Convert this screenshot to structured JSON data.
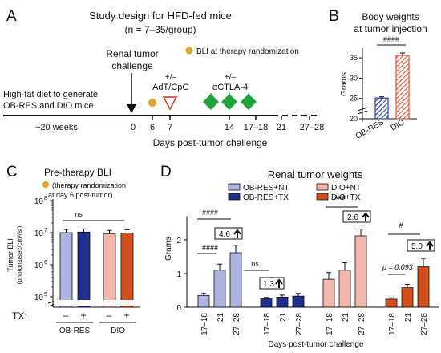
{
  "colors": {
    "ob_nt": "#aeb4e0",
    "ob_tx": "#1f2f8f",
    "dio_nt": "#f2b6ad",
    "dio_tx": "#d2501b",
    "green": "#1fa33a",
    "gold": "#e0a32a",
    "red": "#c8361a"
  },
  "panel_a": {
    "label": "A",
    "title": "Study design for HFD-fed mice",
    "n": "(n = 7–35/group)",
    "challenge_1": "Renal tumor",
    "challenge_2": "challenge",
    "bli_legend": "BLI at therapy randomization",
    "adt_pm": "+/–",
    "adt": "AdT/CpG",
    "actla4_pm": "+/–",
    "actla4": "αCTLA-4",
    "hfd_1": "High-fat diet to generate",
    "hfd_2": "OB-RES and DIO mice",
    "weeks": "~20 weeks",
    "ticks": [
      "0",
      "6",
      "7",
      "14",
      "17–18",
      "21",
      "27–28"
    ],
    "xlabel": "Days post-tumor challenge"
  },
  "panel_b": {
    "label": "B",
    "title_1": "Body weights",
    "title_2": "at tumor injection",
    "ylabel": "Grams",
    "sig": "####",
    "yticks": [
      "20",
      "25",
      "30",
      "35"
    ],
    "categories": [
      "OB-RES",
      "DIO"
    ]
  },
  "panel_c": {
    "label": "C",
    "title": "Pre-therapy BLI",
    "note_1": "(therapy randomization",
    "note_2": "at day 6 post-tumor)",
    "ylabel_1": "Tumor BLI",
    "ylabel_2": "(photons/sec/cm²/sr)",
    "ytick_base": "10",
    "yexps": [
      "5",
      "6",
      "7",
      "8"
    ],
    "ns": "ns",
    "tx_label": "TX:",
    "tx_signs": [
      "–",
      "+",
      "–",
      "+"
    ],
    "groups": [
      "OB-RES",
      "DIO"
    ]
  },
  "panel_d": {
    "label": "D",
    "title": "Renal tumor weights",
    "legend": [
      "OB-RES+NT",
      "OB-RES+TX",
      "DIO+NT",
      "DIO+TX"
    ],
    "ylabel": "Grams",
    "yticks": [
      "0",
      "1",
      "2"
    ],
    "xlabel": "Days post-tumor challenge",
    "xcats": [
      "17–18",
      "21",
      "27–28"
    ],
    "sig_ob_nt_top": "####",
    "sig_ob_nt_low": "####",
    "fold_ob_nt": "4.6",
    "sig_ob_tx": "ns",
    "fold_ob_tx": "1.3",
    "sig_dio_nt": "***",
    "fold_dio_nt": "2.6",
    "sig_dio_tx": "#",
    "p_dio_tx": "p = 0.093",
    "fold_dio_tx": "5.0"
  },
  "chart_data": [
    {
      "type": "bar",
      "panel": "B",
      "title": "Body weights at tumor injection",
      "ylabel": "Grams",
      "categories": [
        "OB-RES",
        "DIO"
      ],
      "values": [
        25.1,
        35.6
      ],
      "errors": [
        0.3,
        0.6
      ],
      "ylim": [
        20,
        37
      ],
      "significance": "####"
    },
    {
      "type": "bar",
      "panel": "C",
      "title": "Pre-therapy BLI",
      "ylabel": "Tumor BLI (photons/sec/cm²/sr)",
      "scale": "log",
      "ylim": [
        100000,
        100000000
      ],
      "categories": [
        "OB-RES TX–",
        "OB-RES TX+",
        "DIO TX–",
        "DIO TX+"
      ],
      "values": [
        10000000,
        10400000,
        9300000,
        9700000
      ],
      "significance": "ns"
    },
    {
      "type": "bar",
      "panel": "D",
      "title": "Renal tumor weights",
      "ylabel": "Grams",
      "xlabel": "Days post-tumor challenge",
      "categories": [
        "17–18",
        "21",
        "27–28"
      ],
      "ylim": [
        0,
        2.7
      ],
      "series": [
        {
          "name": "OB-RES+NT",
          "values": [
            0.35,
            1.1,
            1.62
          ],
          "errors": [
            0.06,
            0.18,
            0.22
          ]
        },
        {
          "name": "OB-RES+TX",
          "values": [
            0.25,
            0.3,
            0.33
          ],
          "errors": [
            0.04,
            0.06,
            0.08
          ]
        },
        {
          "name": "DIO+NT",
          "values": [
            0.83,
            1.1,
            2.12
          ],
          "errors": [
            0.2,
            0.22,
            0.2
          ]
        },
        {
          "name": "DIO+TX",
          "values": [
            0.24,
            0.58,
            1.2
          ],
          "errors": [
            0.04,
            0.1,
            0.25
          ]
        }
      ]
    }
  ]
}
